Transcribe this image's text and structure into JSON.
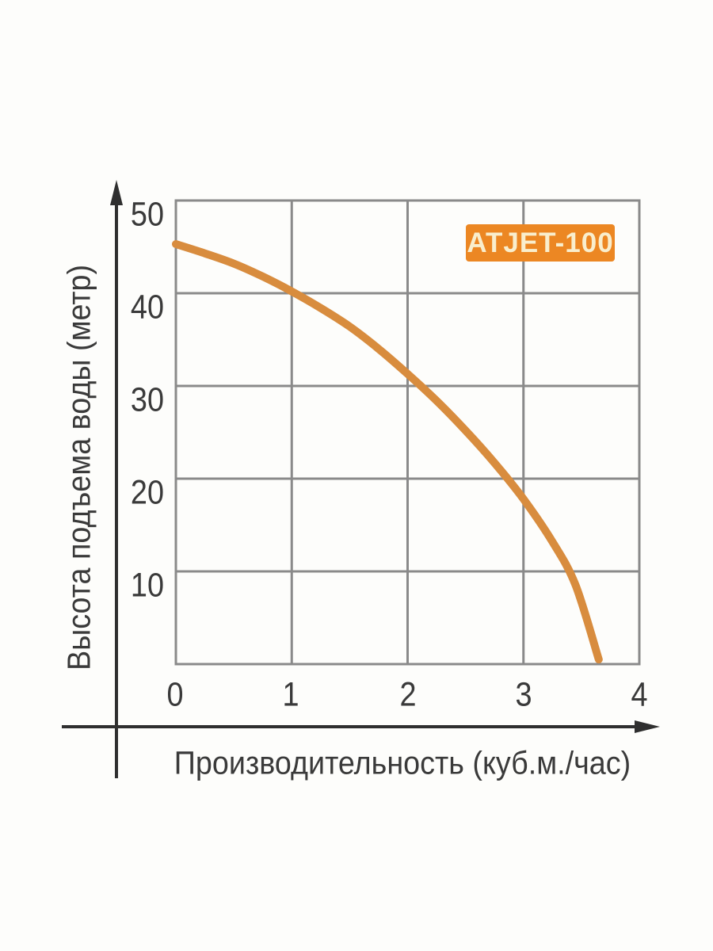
{
  "page": {
    "background": "#fdfdfb"
  },
  "chart_data": {
    "type": "line",
    "badge_label": "ATJET-100",
    "xlabel": "Производительность (куб.м./час)",
    "ylabel": "Высота подъема воды (метр)",
    "xlim": [
      0,
      4
    ],
    "ylim": [
      0,
      50
    ],
    "x_ticks": [
      "0",
      "1",
      "2",
      "3",
      "4"
    ],
    "x_tick_values": [
      0,
      1,
      2,
      3,
      4
    ],
    "y_ticks": [
      "50",
      "40",
      "30",
      "20",
      "10"
    ],
    "y_tick_values": [
      50,
      40,
      30,
      20,
      10
    ],
    "grid": true,
    "legend_position": "none",
    "series": [
      {
        "name": "ATJET-100",
        "color": "#d88c3e",
        "points": [
          [
            0,
            45.3
          ],
          [
            0.25,
            44.3
          ],
          [
            0.5,
            43.2
          ],
          [
            0.75,
            41.8
          ],
          [
            1.0,
            40.2
          ],
          [
            1.25,
            38.4
          ],
          [
            1.5,
            36.4
          ],
          [
            1.75,
            34.0
          ],
          [
            2.0,
            31.3
          ],
          [
            2.25,
            28.4
          ],
          [
            2.5,
            25.2
          ],
          [
            2.75,
            21.7
          ],
          [
            3.0,
            17.8
          ],
          [
            3.25,
            13.2
          ],
          [
            3.45,
            8.5
          ],
          [
            3.65,
            0.5
          ]
        ]
      }
    ],
    "colors": {
      "grid": "#8a8a8a",
      "axis": "#2f2f2f",
      "tick_text": "#3a3a3a",
      "badge_bg": "#ec8723",
      "badge_text": "#f9eecd",
      "curve": "#d88c3e"
    }
  }
}
